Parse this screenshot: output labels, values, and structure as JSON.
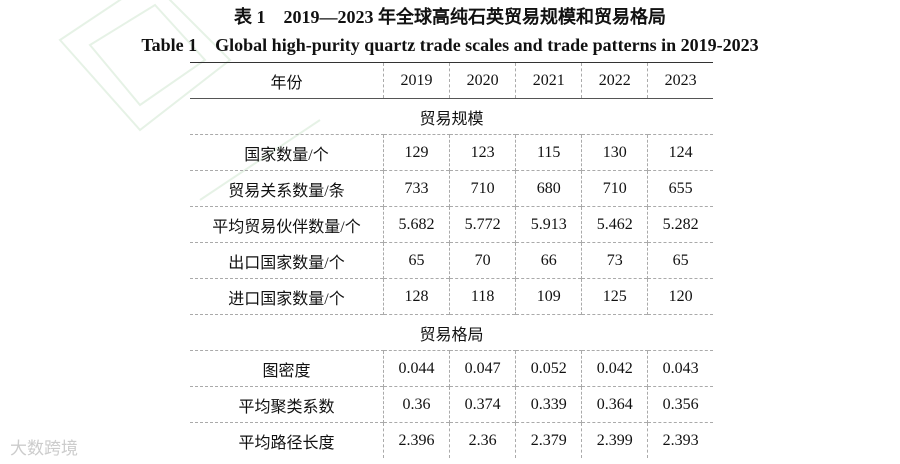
{
  "title_zh": "表 1　2019—2023 年全球高纯石英贸易规模和贸易格局",
  "title_en": "Table 1　Global high-purity quartz trade scales and trade patterns in 2019-2023",
  "table": {
    "header": [
      "年份",
      2019,
      2020,
      2021,
      2022,
      2023
    ],
    "sections": [
      {
        "title": "贸易规模",
        "rows": [
          [
            "国家数量/个",
            129,
            123,
            115,
            130,
            124
          ],
          [
            "贸易关系数量/条",
            733,
            710,
            680,
            710,
            655
          ],
          [
            "平均贸易伙伴数量/个",
            5.682,
            5.772,
            5.913,
            5.462,
            5.282
          ],
          [
            "出口国家数量/个",
            65,
            70,
            66,
            73,
            65
          ],
          [
            "进口国家数量/个",
            128,
            118,
            109,
            125,
            120
          ]
        ]
      },
      {
        "title": "贸易格局",
        "rows": [
          [
            "图密度",
            0.044,
            0.047,
            0.052,
            0.042,
            0.043
          ],
          [
            "平均聚类系数",
            0.36,
            0.374,
            0.339,
            0.364,
            0.356
          ],
          [
            "平均路径长度",
            2.396,
            2.36,
            2.379,
            2.399,
            2.393
          ]
        ]
      }
    ]
  },
  "watermark": "大数跨境"
}
